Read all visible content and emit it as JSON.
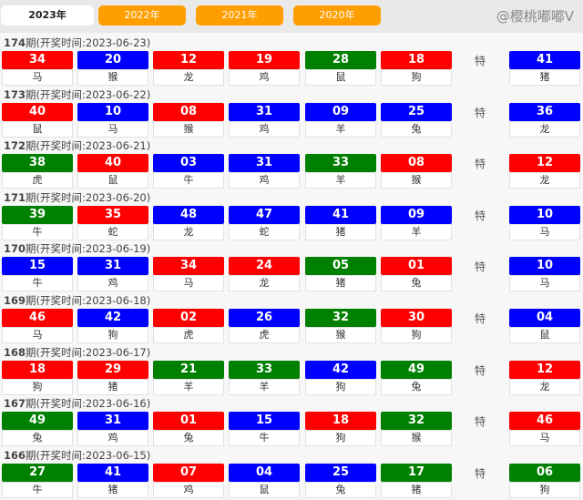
{
  "tabs": [
    {
      "label": "2023年",
      "active": true
    },
    {
      "label": "2022年"
    },
    {
      "label": "2021年"
    },
    {
      "label": "2020年"
    }
  ],
  "special_label": "特",
  "colors": {
    "red": "#ff0000",
    "blue": "#0000ff",
    "green": "#008000"
  },
  "watermark": "@樱桃嘟嘟V",
  "draws": [
    {
      "issue": "174",
      "suffix": "期(开奖时间:2023-06-23)",
      "balls": [
        [
          "34",
          "马",
          "red"
        ],
        [
          "20",
          "猴",
          "blue"
        ],
        [
          "12",
          "龙",
          "red"
        ],
        [
          "19",
          "鸡",
          "red"
        ],
        [
          "28",
          "鼠",
          "green"
        ],
        [
          "18",
          "狗",
          "red"
        ]
      ],
      "special": [
        "41",
        "猪",
        "blue"
      ]
    },
    {
      "issue": "173",
      "suffix": "期(开奖时间:2023-06-22)",
      "balls": [
        [
          "40",
          "鼠",
          "red"
        ],
        [
          "10",
          "马",
          "blue"
        ],
        [
          "08",
          "猴",
          "red"
        ],
        [
          "31",
          "鸡",
          "blue"
        ],
        [
          "09",
          "羊",
          "blue"
        ],
        [
          "25",
          "兔",
          "blue"
        ]
      ],
      "special": [
        "36",
        "龙",
        "blue"
      ]
    },
    {
      "issue": "172",
      "suffix": "期(开奖时间:2023-06-21)",
      "balls": [
        [
          "38",
          "虎",
          "green"
        ],
        [
          "40",
          "鼠",
          "red"
        ],
        [
          "03",
          "牛",
          "blue"
        ],
        [
          "31",
          "鸡",
          "blue"
        ],
        [
          "33",
          "羊",
          "green"
        ],
        [
          "08",
          "猴",
          "red"
        ]
      ],
      "special": [
        "12",
        "龙",
        "red"
      ]
    },
    {
      "issue": "171",
      "suffix": "期(开奖时间:2023-06-20)",
      "balls": [
        [
          "39",
          "牛",
          "green"
        ],
        [
          "35",
          "蛇",
          "red"
        ],
        [
          "48",
          "龙",
          "blue"
        ],
        [
          "47",
          "蛇",
          "blue"
        ],
        [
          "41",
          "猪",
          "blue"
        ],
        [
          "09",
          "羊",
          "blue"
        ]
      ],
      "special": [
        "10",
        "马",
        "blue"
      ]
    },
    {
      "issue": "170",
      "suffix": "期(开奖时间:2023-06-19)",
      "balls": [
        [
          "15",
          "牛",
          "blue"
        ],
        [
          "31",
          "鸡",
          "blue"
        ],
        [
          "34",
          "马",
          "red"
        ],
        [
          "24",
          "龙",
          "red"
        ],
        [
          "05",
          "猪",
          "green"
        ],
        [
          "01",
          "兔",
          "red"
        ]
      ],
      "special": [
        "10",
        "马",
        "blue"
      ]
    },
    {
      "issue": "169",
      "suffix": "期(开奖时间:2023-06-18)",
      "balls": [
        [
          "46",
          "马",
          "red"
        ],
        [
          "42",
          "狗",
          "blue"
        ],
        [
          "02",
          "虎",
          "red"
        ],
        [
          "26",
          "虎",
          "blue"
        ],
        [
          "32",
          "猴",
          "green"
        ],
        [
          "30",
          "狗",
          "red"
        ]
      ],
      "special": [
        "04",
        "鼠",
        "blue"
      ]
    },
    {
      "issue": "168",
      "suffix": "期(开奖时间:2023-06-17)",
      "balls": [
        [
          "18",
          "狗",
          "red"
        ],
        [
          "29",
          "猪",
          "red"
        ],
        [
          "21",
          "羊",
          "green"
        ],
        [
          "33",
          "羊",
          "green"
        ],
        [
          "42",
          "狗",
          "blue"
        ],
        [
          "49",
          "兔",
          "green"
        ]
      ],
      "special": [
        "12",
        "龙",
        "red"
      ]
    },
    {
      "issue": "167",
      "suffix": "期(开奖时间:2023-06-16)",
      "balls": [
        [
          "49",
          "兔",
          "green"
        ],
        [
          "31",
          "鸡",
          "blue"
        ],
        [
          "01",
          "兔",
          "red"
        ],
        [
          "15",
          "牛",
          "blue"
        ],
        [
          "18",
          "狗",
          "red"
        ],
        [
          "32",
          "猴",
          "green"
        ]
      ],
      "special": [
        "46",
        "马",
        "red"
      ]
    },
    {
      "issue": "166",
      "suffix": "期(开奖时间:2023-06-15)",
      "balls": [
        [
          "27",
          "牛",
          "green"
        ],
        [
          "41",
          "猪",
          "blue"
        ],
        [
          "07",
          "鸡",
          "red"
        ],
        [
          "04",
          "鼠",
          "blue"
        ],
        [
          "25",
          "兔",
          "blue"
        ],
        [
          "17",
          "猪",
          "green"
        ]
      ],
      "special": [
        "06",
        "狗",
        "green"
      ]
    }
  ]
}
